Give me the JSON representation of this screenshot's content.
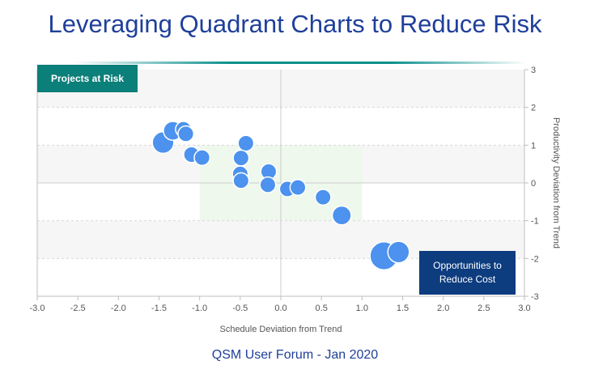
{
  "title": "Leveraging Quadrant Charts to Reduce Risk",
  "footer": "QSM User Forum - Jan 2020",
  "quadrant_labels": {
    "top_left": "Projects at Risk",
    "bottom_right_line1": "Opportunities to",
    "bottom_right_line2": "Reduce Cost"
  },
  "chart_data": {
    "type": "scatter",
    "xlabel": "Schedule Deviation from Trend",
    "ylabel": "Productivity Deviation from Trend",
    "xlim": [
      -3.0,
      3.0
    ],
    "ylim": [
      -3,
      3
    ],
    "x_ticks": [
      "-3.0",
      "-2.5",
      "-2.0",
      "-1.5",
      "-1.0",
      "-0.5",
      "0.0",
      "0.5",
      "1.0",
      "1.5",
      "2.0",
      "2.5",
      "3.0"
    ],
    "y_ticks": [
      "3",
      "2",
      "1",
      "0",
      "-1",
      "-2",
      "-3"
    ],
    "grid": "horizontal bands",
    "center_zone": {
      "x": [
        -1.0,
        1.0
      ],
      "y": [
        -1.0,
        1.0
      ]
    },
    "colors": {
      "bubble": "#4c92ee",
      "band": "#f6f6f6",
      "center_zone": "#eef8ec"
    },
    "points": [
      {
        "x": -1.45,
        "y": 1.07,
        "size": 4
      },
      {
        "x": -1.33,
        "y": 1.38,
        "size": 3
      },
      {
        "x": -1.2,
        "y": 1.42,
        "size": 2
      },
      {
        "x": -1.17,
        "y": 1.3,
        "size": 2
      },
      {
        "x": -1.1,
        "y": 0.75,
        "size": 2
      },
      {
        "x": -0.97,
        "y": 0.67,
        "size": 2
      },
      {
        "x": -0.43,
        "y": 1.05,
        "size": 2
      },
      {
        "x": -0.49,
        "y": 0.66,
        "size": 2
      },
      {
        "x": -0.5,
        "y": 0.24,
        "size": 2
      },
      {
        "x": -0.49,
        "y": 0.06,
        "size": 2
      },
      {
        "x": -0.15,
        "y": 0.3,
        "size": 2
      },
      {
        "x": -0.16,
        "y": -0.05,
        "size": 2
      },
      {
        "x": 0.08,
        "y": -0.16,
        "size": 2
      },
      {
        "x": 0.21,
        "y": -0.12,
        "size": 2
      },
      {
        "x": 0.52,
        "y": -0.38,
        "size": 2
      },
      {
        "x": 0.75,
        "y": -0.86,
        "size": 3
      },
      {
        "x": 1.27,
        "y": -1.93,
        "size": 7
      },
      {
        "x": 1.45,
        "y": -1.83,
        "size": 4
      }
    ]
  }
}
